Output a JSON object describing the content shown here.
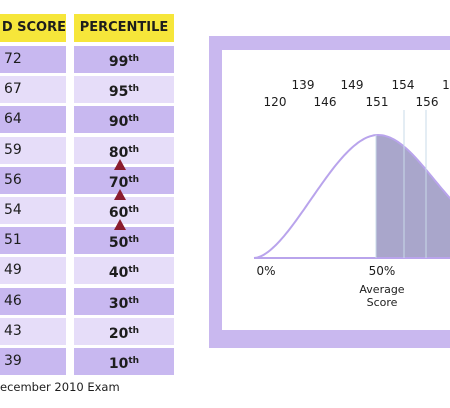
{
  "table": {
    "headers": {
      "score": "D SCORE",
      "percentile": "PERCENTILE"
    },
    "rows": [
      {
        "score": "72",
        "pct": "99",
        "suffix": "th"
      },
      {
        "score": "67",
        "pct": "95",
        "suffix": "th"
      },
      {
        "score": "64",
        "pct": "90",
        "suffix": "th"
      },
      {
        "score": "59",
        "pct": "80",
        "suffix": "th"
      },
      {
        "score": "56",
        "pct": "70",
        "suffix": "th"
      },
      {
        "score": "54",
        "pct": "60",
        "suffix": "th"
      },
      {
        "score": "51",
        "pct": "50",
        "suffix": "th"
      },
      {
        "score": "49",
        "pct": "40",
        "suffix": "th"
      },
      {
        "score": "46",
        "pct": "30",
        "suffix": "th"
      },
      {
        "score": "43",
        "pct": "20",
        "suffix": "th"
      },
      {
        "score": "39",
        "pct": "10",
        "suffix": "th"
      }
    ]
  },
  "caption": "ecember 2010 Exam",
  "colors": {
    "header": "#f6e63a",
    "row_dark": "#c8b8f0",
    "row_light": "#e6ddf9",
    "arrow": "#8b1c2e",
    "curve": "#b9a4ec",
    "shade": "#a9a6cb"
  },
  "chart_data": {
    "type": "area",
    "score_labels_upper": [
      "139",
      "149",
      "154",
      "1"
    ],
    "score_labels_lower": [
      "120",
      "146",
      "151",
      "156"
    ],
    "axis_labels": [
      "0%",
      "50%"
    ],
    "annotation": "Average\nScore",
    "shaded_from_percentile": 50
  }
}
